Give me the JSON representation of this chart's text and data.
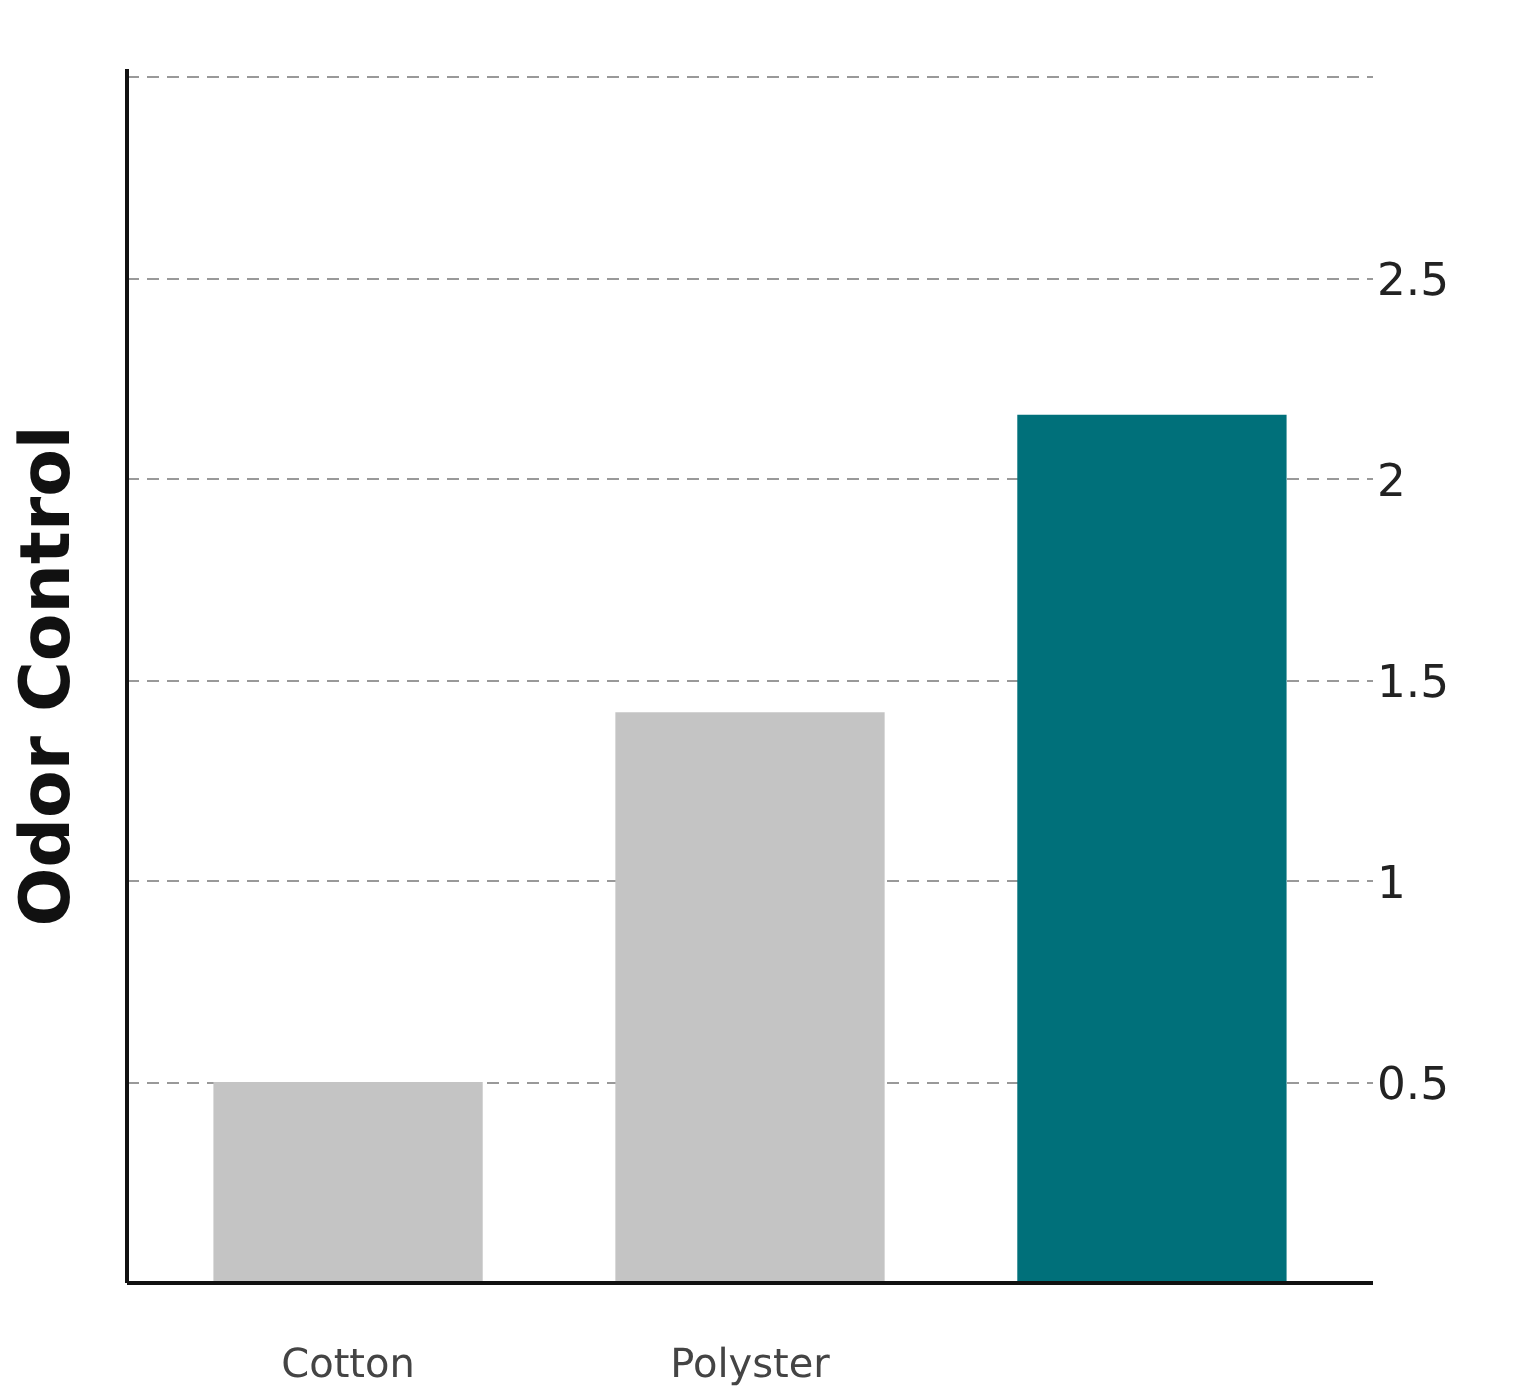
{
  "chart_data": {
    "type": "bar",
    "ylabel": "Odor Control",
    "categories": [
      "Cotton",
      "Polyster",
      null
    ],
    "values": [
      0.5,
      1.42,
      2.16
    ],
    "colors": [
      "#c4c4c4",
      "#c4c4c4",
      "#00707a"
    ],
    "ylim": [
      0,
      3.02
    ],
    "yticks": [
      0.5,
      1,
      1.5,
      2,
      2.5,
      {
        "value": 3,
        "label": null
      }
    ],
    "grid": "y"
  }
}
